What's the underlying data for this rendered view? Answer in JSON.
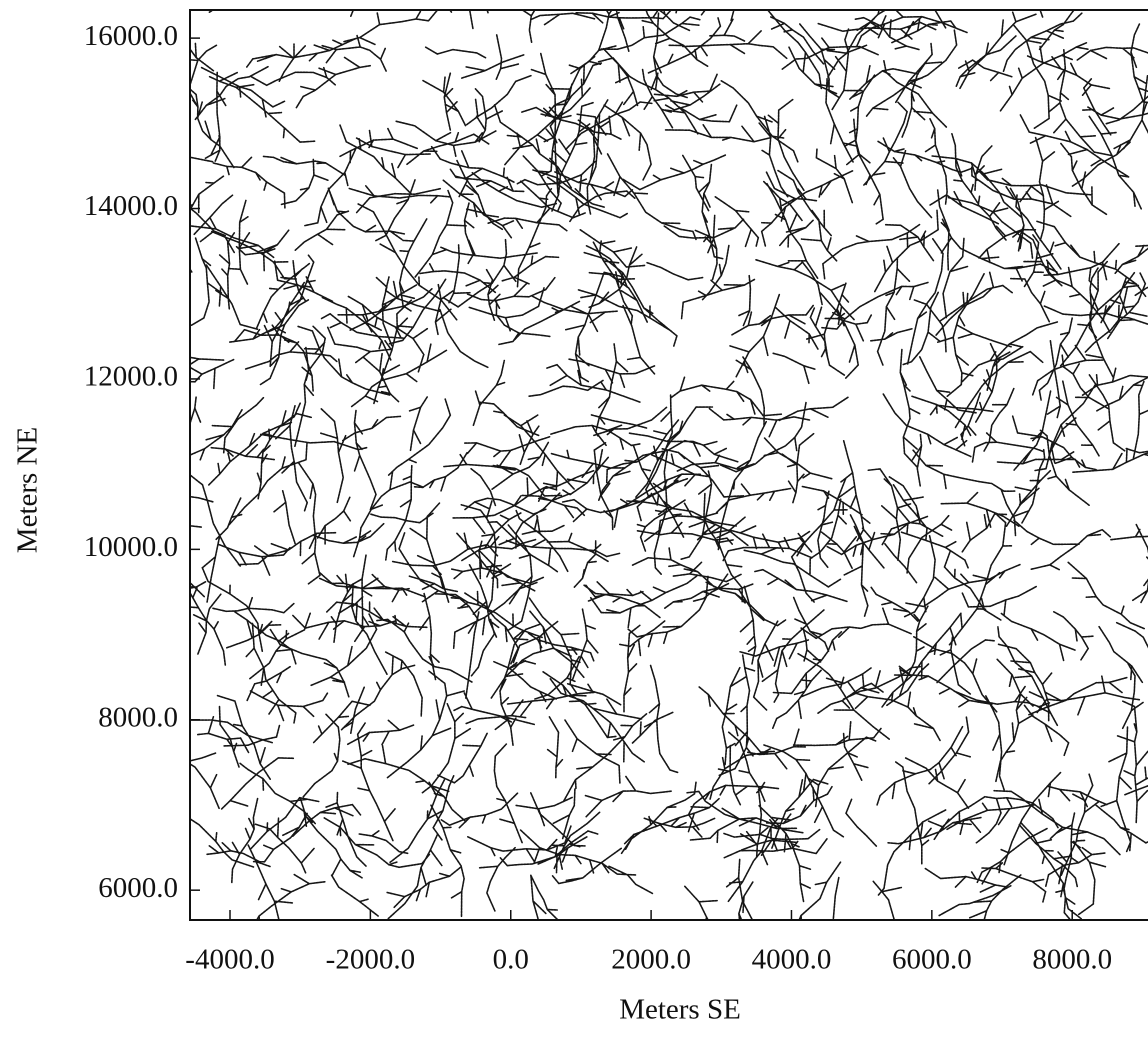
{
  "chart_data": {
    "type": "map",
    "x_label": "Meters  SE",
    "y_label": "Meters NE",
    "xlim": [
      -4570,
      9080
    ],
    "ylim": [
      5650,
      16330
    ],
    "xticks": [
      {
        "value": -4000,
        "label": "-4000.0"
      },
      {
        "value": -2000,
        "label": "-2000.0"
      },
      {
        "value": 0,
        "label": "0.0"
      },
      {
        "value": 2000,
        "label": "2000.0"
      },
      {
        "value": 4000,
        "label": "4000.0"
      },
      {
        "value": 6000,
        "label": "6000.0"
      },
      {
        "value": 8000,
        "label": "8000.0"
      }
    ],
    "yticks": [
      {
        "value": 6000,
        "label": "6000.0"
      },
      {
        "value": 8000,
        "label": "8000.0"
      },
      {
        "value": 10000,
        "label": "10000.0"
      },
      {
        "value": 12000,
        "label": "12000.0"
      },
      {
        "value": 14000,
        "label": "14000.0"
      },
      {
        "value": 16000,
        "label": "16000.0"
      }
    ]
  }
}
